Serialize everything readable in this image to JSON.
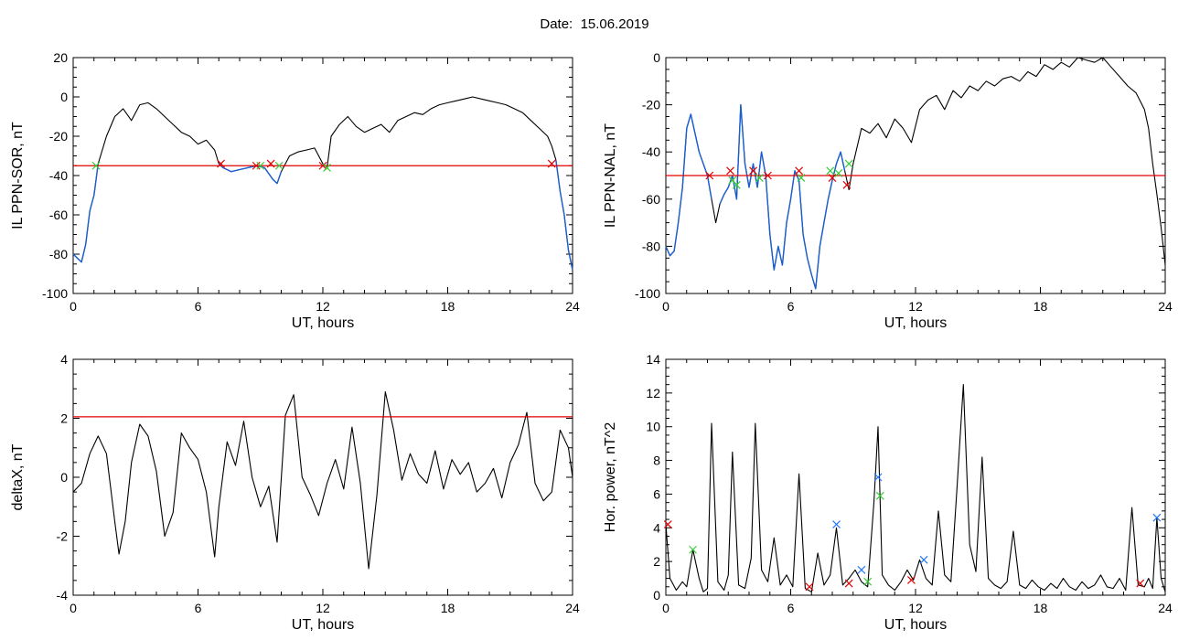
{
  "header": {
    "date_label": "Date:",
    "date_value": "15.06.2019"
  },
  "colors": {
    "trace": "#000000",
    "threshold": "#e00000",
    "highlight": "#1a5fd0",
    "marker_red": "#e00000",
    "marker_green": "#33cc33",
    "marker_blue": "#1f78ff"
  },
  "chart_data": [
    {
      "id": "sor",
      "type": "line",
      "xlabel": "UT, hours",
      "ylabel": "IL PPN-SOR, nT",
      "xlim": [
        0,
        24
      ],
      "ylim": [
        -100,
        20
      ],
      "xticks": [
        0,
        6,
        12,
        18,
        24
      ],
      "xtick_labels": [
        "0",
        "6",
        "12",
        "18",
        "24"
      ],
      "yticks": [
        -100,
        -80,
        -60,
        -40,
        -20,
        0,
        20
      ],
      "ytick_labels": [
        "-100",
        "-80",
        "-60",
        "-40",
        "-20",
        "0",
        "20"
      ],
      "threshold": -35,
      "series": [
        {
          "x": [
            0,
            0.2,
            0.4,
            0.6,
            0.8,
            1.0,
            1.2,
            1.6,
            2.0,
            2.4,
            2.8,
            3.2,
            3.6,
            4.0,
            4.4,
            4.8,
            5.2,
            5.6,
            6.0,
            6.4,
            6.8,
            7.0,
            7.2,
            7.6,
            8.0,
            8.4,
            8.8,
            9.2,
            9.6,
            9.8,
            10.0,
            10.4,
            10.8,
            11.2,
            11.6,
            12.0,
            12.2,
            12.4,
            12.8,
            13.2,
            13.6,
            14.0,
            14.4,
            14.8,
            15.2,
            15.6,
            16.0,
            16.4,
            16.8,
            17.2,
            17.6,
            18.0,
            18.4,
            18.8,
            19.2,
            19.6,
            20.0,
            20.4,
            20.8,
            21.2,
            21.6,
            22.0,
            22.4,
            22.8,
            23.0,
            23.2,
            23.4,
            23.6,
            23.8,
            24.0
          ],
          "y": [
            -80,
            -82,
            -84,
            -75,
            -58,
            -50,
            -34,
            -20,
            -10,
            -6,
            -12,
            -4,
            -3,
            -6,
            -10,
            -14,
            -18,
            -20,
            -24,
            -22,
            -27,
            -34,
            -36,
            -38,
            -37,
            -36,
            -35,
            -36,
            -42,
            -44,
            -38,
            -30,
            -28,
            -27,
            -26,
            -34,
            -36,
            -20,
            -14,
            -10,
            -15,
            -18,
            -16,
            -14,
            -18,
            -12,
            -10,
            -8,
            -9,
            -6,
            -4,
            -3,
            -2,
            -1,
            0,
            -1,
            -2,
            -3,
            -4,
            -6,
            -8,
            -12,
            -16,
            -20,
            -25,
            -32,
            -48,
            -60,
            -78,
            -88
          ]
        }
      ],
      "below_threshold_intervals": [
        [
          0,
          1.2
        ],
        [
          7.0,
          10.2
        ],
        [
          12.0,
          12.2
        ],
        [
          23.1,
          24.0
        ]
      ],
      "markers": [
        {
          "x": 1.1,
          "y": -35,
          "color": "green"
        },
        {
          "x": 7.1,
          "y": -34,
          "color": "red"
        },
        {
          "x": 8.8,
          "y": -35,
          "color": "red"
        },
        {
          "x": 9.0,
          "y": -35,
          "color": "green"
        },
        {
          "x": 9.5,
          "y": -34,
          "color": "red"
        },
        {
          "x": 9.9,
          "y": -35,
          "color": "green"
        },
        {
          "x": 12.0,
          "y": -35,
          "color": "red"
        },
        {
          "x": 12.2,
          "y": -36,
          "color": "green"
        },
        {
          "x": 23.0,
          "y": -34,
          "color": "red"
        }
      ]
    },
    {
      "id": "nal",
      "type": "line",
      "xlabel": "UT, hours",
      "ylabel": "IL PPN-NAL, nT",
      "xlim": [
        0,
        24
      ],
      "ylim": [
        -100,
        0
      ],
      "xticks": [
        0,
        6,
        12,
        18,
        24
      ],
      "xtick_labels": [
        "0",
        "6",
        "12",
        "18",
        "24"
      ],
      "yticks": [
        -100,
        -80,
        -60,
        -40,
        -20,
        0
      ],
      "ytick_labels": [
        "-100",
        "-80",
        "-60",
        "-40",
        "-20",
        "0"
      ],
      "threshold": -50,
      "series": [
        {
          "x": [
            0,
            0.2,
            0.4,
            0.6,
            0.8,
            1.0,
            1.2,
            1.6,
            2.0,
            2.2,
            2.4,
            2.6,
            2.8,
            3.0,
            3.2,
            3.4,
            3.6,
            3.8,
            4.0,
            4.2,
            4.4,
            4.6,
            4.8,
            5.0,
            5.2,
            5.4,
            5.6,
            5.8,
            6.0,
            6.2,
            6.4,
            6.6,
            6.8,
            7.0,
            7.2,
            7.4,
            7.6,
            7.8,
            8.0,
            8.2,
            8.4,
            8.6,
            8.8,
            9.0,
            9.4,
            9.8,
            10.2,
            10.6,
            11.0,
            11.4,
            11.8,
            12.2,
            12.6,
            13.0,
            13.4,
            13.8,
            14.2,
            14.6,
            15.0,
            15.4,
            15.8,
            16.2,
            16.6,
            17.0,
            17.4,
            17.8,
            18.2,
            18.6,
            19.0,
            19.4,
            19.8,
            20.2,
            20.6,
            21.0,
            21.4,
            21.8,
            22.2,
            22.6,
            23.0,
            23.2,
            23.4,
            23.6,
            23.8,
            24.0
          ],
          "y": [
            -80,
            -84,
            -82,
            -70,
            -55,
            -30,
            -24,
            -40,
            -50,
            -60,
            -70,
            -62,
            -58,
            -55,
            -50,
            -60,
            -20,
            -45,
            -55,
            -45,
            -55,
            -40,
            -50,
            -75,
            -90,
            -80,
            -88,
            -70,
            -60,
            -48,
            -52,
            -75,
            -85,
            -92,
            -98,
            -80,
            -70,
            -60,
            -52,
            -45,
            -40,
            -48,
            -56,
            -45,
            -30,
            -32,
            -28,
            -34,
            -26,
            -30,
            -36,
            -22,
            -18,
            -16,
            -22,
            -14,
            -17,
            -12,
            -14,
            -10,
            -12,
            -9,
            -8,
            -10,
            -6,
            -8,
            -3,
            -5,
            -2,
            -4,
            0,
            -1,
            -2,
            0,
            -4,
            -8,
            -12,
            -15,
            -22,
            -30,
            -45,
            -58,
            -72,
            -88
          ]
        }
      ],
      "below_threshold_intervals": [
        [
          0,
          2.2
        ],
        [
          2.6,
          8.6
        ]
      ],
      "markers": [
        {
          "x": 2.1,
          "y": -50,
          "color": "red"
        },
        {
          "x": 3.1,
          "y": -48,
          "color": "red"
        },
        {
          "x": 3.2,
          "y": -52,
          "color": "green"
        },
        {
          "x": 3.4,
          "y": -54,
          "color": "green"
        },
        {
          "x": 4.2,
          "y": -48,
          "color": "red"
        },
        {
          "x": 4.5,
          "y": -51,
          "color": "green"
        },
        {
          "x": 4.9,
          "y": -50,
          "color": "red"
        },
        {
          "x": 6.4,
          "y": -48,
          "color": "red"
        },
        {
          "x": 6.5,
          "y": -51,
          "color": "green"
        },
        {
          "x": 7.9,
          "y": -48,
          "color": "green"
        },
        {
          "x": 8.0,
          "y": -51,
          "color": "red"
        },
        {
          "x": 8.3,
          "y": -49,
          "color": "green"
        },
        {
          "x": 8.7,
          "y": -54,
          "color": "red"
        },
        {
          "x": 8.8,
          "y": -45,
          "color": "green"
        }
      ]
    },
    {
      "id": "deltax",
      "type": "line",
      "xlabel": "UT, hours",
      "ylabel": "deltaX, nT",
      "xlim": [
        0,
        24
      ],
      "ylim": [
        -4,
        4
      ],
      "xticks": [
        0,
        6,
        12,
        18,
        24
      ],
      "xtick_labels": [
        "0",
        "6",
        "12",
        "18",
        "24"
      ],
      "yticks": [
        -4,
        -2,
        0,
        2,
        4
      ],
      "ytick_labels": [
        "-4",
        "-2",
        "0",
        "2",
        "4"
      ],
      "threshold": 2.05,
      "series": [
        {
          "x": [
            0,
            0.4,
            0.8,
            1.2,
            1.6,
            2.0,
            2.2,
            2.5,
            2.8,
            3.2,
            3.6,
            4.0,
            4.4,
            4.8,
            5.2,
            5.6,
            6.0,
            6.4,
            6.8,
            7.0,
            7.4,
            7.8,
            8.2,
            8.6,
            9.0,
            9.4,
            9.8,
            10.2,
            10.6,
            11.0,
            11.4,
            11.8,
            12.2,
            12.6,
            13.0,
            13.4,
            13.8,
            14.2,
            14.6,
            15.0,
            15.4,
            15.8,
            16.2,
            16.6,
            17.0,
            17.4,
            17.8,
            18.2,
            18.6,
            19.0,
            19.4,
            19.8,
            20.2,
            20.6,
            21.0,
            21.4,
            21.8,
            22.2,
            22.6,
            23.0,
            23.4,
            23.8,
            24.0
          ],
          "y": [
            -0.5,
            -0.2,
            0.8,
            1.4,
            0.8,
            -1.5,
            -2.6,
            -1.5,
            0.5,
            1.8,
            1.4,
            0.2,
            -2.0,
            -1.2,
            1.5,
            1.0,
            0.6,
            -0.5,
            -2.7,
            -1.0,
            1.2,
            0.4,
            1.9,
            0.0,
            -1.0,
            -0.3,
            -2.2,
            2.1,
            2.8,
            0.0,
            -0.6,
            -1.3,
            -0.2,
            0.6,
            -0.4,
            1.7,
            -0.2,
            -3.1,
            -0.6,
            2.9,
            1.6,
            -0.1,
            0.8,
            0.1,
            -0.2,
            0.9,
            -0.4,
            0.6,
            0.1,
            0.5,
            -0.5,
            -0.2,
            0.3,
            -0.7,
            0.5,
            1.1,
            2.2,
            -0.2,
            -0.8,
            -0.5,
            1.6,
            1.0,
            0.0
          ]
        }
      ],
      "markers": []
    },
    {
      "id": "power",
      "type": "line",
      "xlabel": "UT, hours",
      "ylabel": "Hor. power, nT^2",
      "xlim": [
        0,
        24
      ],
      "ylim": [
        0,
        14
      ],
      "xticks": [
        0,
        6,
        12,
        18,
        24
      ],
      "xtick_labels": [
        "0",
        "6",
        "12",
        "18",
        "24"
      ],
      "yticks": [
        0,
        2,
        4,
        6,
        8,
        10,
        12,
        14
      ],
      "ytick_labels": [
        "0",
        "2",
        "4",
        "6",
        "8",
        "10",
        "12",
        "14"
      ],
      "series": [
        {
          "x": [
            0,
            0.2,
            0.5,
            0.8,
            1.0,
            1.3,
            1.6,
            1.8,
            2.0,
            2.2,
            2.5,
            2.8,
            3.0,
            3.2,
            3.5,
            3.8,
            4.1,
            4.3,
            4.6,
            4.9,
            5.2,
            5.5,
            5.8,
            6.1,
            6.4,
            6.7,
            7.0,
            7.3,
            7.6,
            7.9,
            8.2,
            8.5,
            8.8,
            9.1,
            9.4,
            9.7,
            10.0,
            10.2,
            10.4,
            10.7,
            11.0,
            11.3,
            11.6,
            11.9,
            12.2,
            12.5,
            12.8,
            13.1,
            13.4,
            13.7,
            14.0,
            14.3,
            14.6,
            14.9,
            15.2,
            15.5,
            15.8,
            16.1,
            16.4,
            16.7,
            17.0,
            17.3,
            17.6,
            17.9,
            18.2,
            18.5,
            18.8,
            19.1,
            19.4,
            19.7,
            20.0,
            20.3,
            20.6,
            20.9,
            21.2,
            21.5,
            21.8,
            22.1,
            22.4,
            22.7,
            23.0,
            23.2,
            23.4,
            23.6,
            23.8,
            24.0
          ],
          "y": [
            4.2,
            1.0,
            0.3,
            0.8,
            0.5,
            2.7,
            1.0,
            0.2,
            0.4,
            10.2,
            0.8,
            0.3,
            1.2,
            8.5,
            0.6,
            0.4,
            2.2,
            10.2,
            1.5,
            0.8,
            3.4,
            0.6,
            1.2,
            0.5,
            7.2,
            0.4,
            0.2,
            2.5,
            0.6,
            1.2,
            4.0,
            0.6,
            1.0,
            1.5,
            0.8,
            0.5,
            5.5,
            10.0,
            1.2,
            0.6,
            0.3,
            0.8,
            1.5,
            0.9,
            2.1,
            1.0,
            0.6,
            5.0,
            1.2,
            0.8,
            6.5,
            12.5,
            3.0,
            1.4,
            8.2,
            1.0,
            0.6,
            0.4,
            0.8,
            3.8,
            0.6,
            0.4,
            0.9,
            0.5,
            0.3,
            0.7,
            0.4,
            1.0,
            0.5,
            0.3,
            0.8,
            0.4,
            0.6,
            1.2,
            0.5,
            0.4,
            1.0,
            0.3,
            5.2,
            0.6,
            0.5,
            1.0,
            0.4,
            4.6,
            1.0,
            0.2
          ]
        }
      ],
      "markers": [
        {
          "x": 0.1,
          "y": 4.2,
          "color": "red"
        },
        {
          "x": 1.3,
          "y": 2.7,
          "color": "green"
        },
        {
          "x": 6.9,
          "y": 0.5,
          "color": "red"
        },
        {
          "x": 8.2,
          "y": 4.2,
          "color": "blue"
        },
        {
          "x": 8.8,
          "y": 0.7,
          "color": "red"
        },
        {
          "x": 9.4,
          "y": 1.5,
          "color": "blue"
        },
        {
          "x": 9.7,
          "y": 0.8,
          "color": "green"
        },
        {
          "x": 10.2,
          "y": 7.0,
          "color": "blue"
        },
        {
          "x": 10.3,
          "y": 5.9,
          "color": "green"
        },
        {
          "x": 11.8,
          "y": 0.9,
          "color": "red"
        },
        {
          "x": 12.4,
          "y": 2.1,
          "color": "blue"
        },
        {
          "x": 22.8,
          "y": 0.7,
          "color": "red"
        },
        {
          "x": 23.6,
          "y": 4.6,
          "color": "blue"
        }
      ]
    }
  ]
}
